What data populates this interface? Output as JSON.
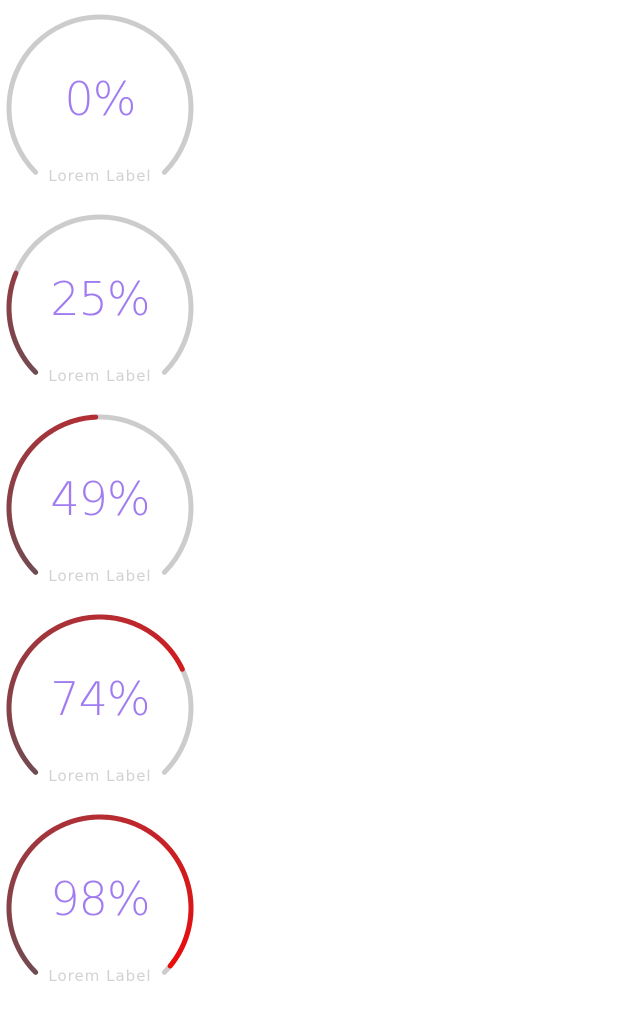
{
  "colors": {
    "track": "#cccccc",
    "progress_start": "#704b52",
    "progress_mid": "#b52d33",
    "progress_end": "#ee0a0a",
    "value_text": "#a07cf0",
    "label_text": "#d2d2d2"
  },
  "gauges": [
    {
      "value": 0,
      "value_text": "0%",
      "label": "Lorem Label"
    },
    {
      "value": 25,
      "value_text": "25%",
      "label": "Lorem Label"
    },
    {
      "value": 49,
      "value_text": "49%",
      "label": "Lorem Label"
    },
    {
      "value": 74,
      "value_text": "74%",
      "label": "Lorem Label"
    },
    {
      "value": 98,
      "value_text": "98%",
      "label": "Lorem Label"
    }
  ]
}
